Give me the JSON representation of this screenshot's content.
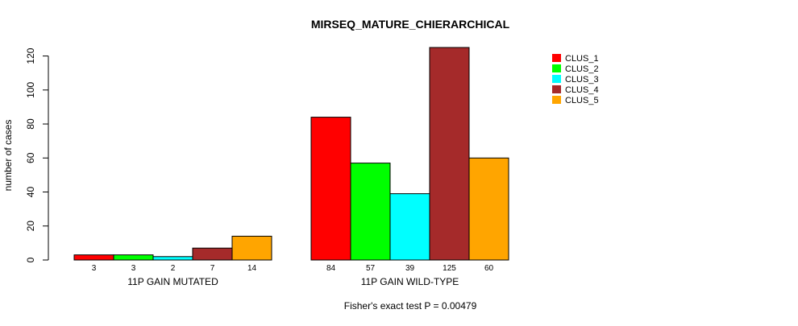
{
  "chart_data": {
    "type": "bar",
    "title": "MIRSEQ_MATURE_CHIERARCHICAL",
    "ylabel": "number of cases",
    "xlabel": "",
    "ylim": [
      0,
      125
    ],
    "yticks": [
      0,
      20,
      40,
      60,
      80,
      100,
      120
    ],
    "groups": [
      "11P GAIN MUTATED",
      "11P GAIN WILD-TYPE"
    ],
    "series": [
      {
        "name": "CLUS_1",
        "color": "#ff0000",
        "values": [
          3,
          84
        ]
      },
      {
        "name": "CLUS_2",
        "color": "#00ff00",
        "values": [
          3,
          57
        ]
      },
      {
        "name": "CLUS_3",
        "color": "#00ffff",
        "values": [
          2,
          39
        ]
      },
      {
        "name": "CLUS_4",
        "color": "#a52a2a",
        "values": [
          7,
          125
        ]
      },
      {
        "name": "CLUS_5",
        "color": "#ffa500",
        "values": [
          14,
          60
        ]
      }
    ],
    "legend_position": "top-right",
    "footnote": "Fisher's exact test P = 0.00479"
  }
}
